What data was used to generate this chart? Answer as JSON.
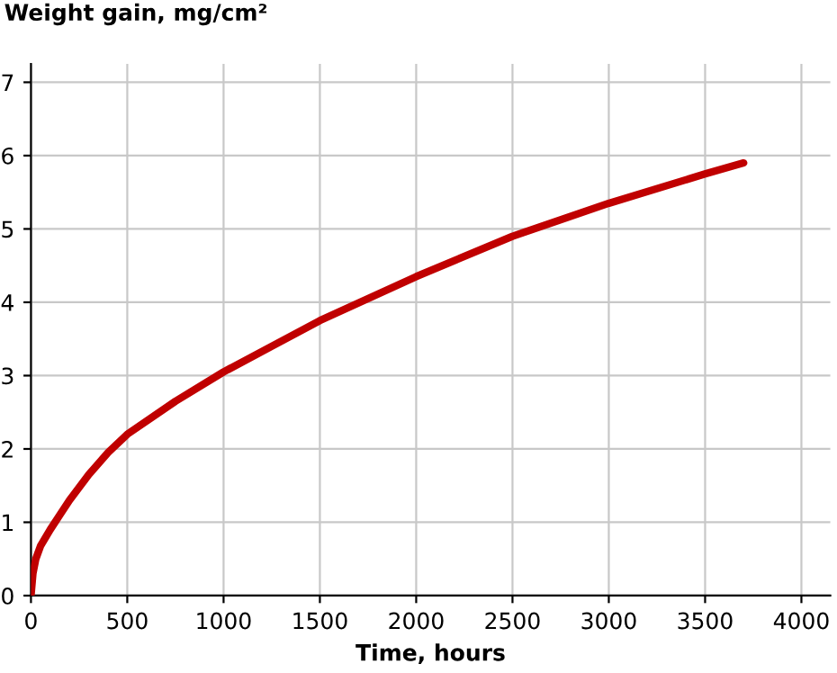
{
  "chart_data": {
    "type": "line",
    "xlabel": "Time, hours",
    "ylabel": "Weight gain, mg/cm²",
    "x": [
      0,
      10,
      25,
      50,
      100,
      150,
      200,
      300,
      400,
      500,
      750,
      1000,
      1250,
      1500,
      2000,
      2500,
      3000,
      3500,
      3700
    ],
    "series": [
      {
        "color": "#c00000",
        "values": [
          0,
          0.3,
          0.5,
          0.68,
          0.9,
          1.1,
          1.3,
          1.65,
          1.95,
          2.2,
          2.65,
          3.05,
          3.4,
          3.75,
          4.35,
          4.9,
          5.35,
          5.75,
          5.9
        ]
      }
    ],
    "xlim": [
      0,
      4150
    ],
    "ylim": [
      0,
      7.25
    ],
    "xticks": [
      0,
      500,
      1000,
      1500,
      2000,
      2500,
      3000,
      3500,
      4000
    ],
    "yticks": [
      0,
      1,
      2,
      3,
      4,
      5,
      6,
      7
    ],
    "grid": true,
    "marker": "none",
    "line_style": "solid"
  }
}
